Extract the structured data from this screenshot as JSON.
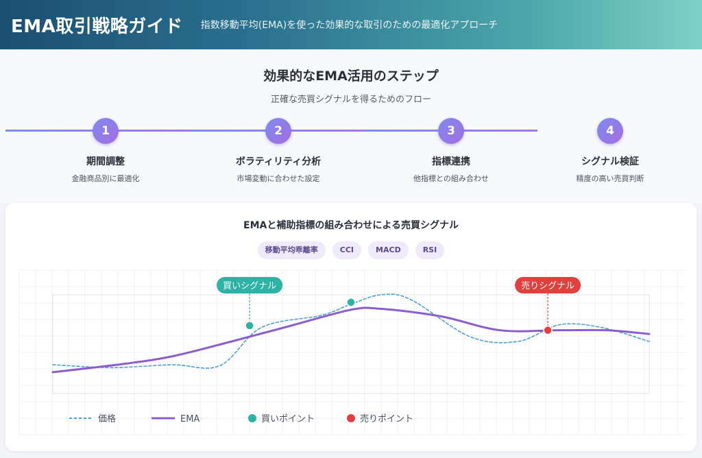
{
  "header": {
    "title": "EMA取引戦略ガイド",
    "subtitle": "指数移動平均(EMA)を使った効果的な取引のための最適化アプローチ"
  },
  "steps_section": {
    "title": "効果的なEMA活用のステップ",
    "subtitle": "正確な売買シグナルを得るためのフロー",
    "steps": [
      {
        "number": "1",
        "name": "期間調整",
        "desc": "金融商品別に最適化"
      },
      {
        "number": "2",
        "name": "ボラティリティ分析",
        "desc": "市場変動に合わせた設定"
      },
      {
        "number": "3",
        "name": "指標連携",
        "desc": "他指標との組み合わせ"
      },
      {
        "number": "4",
        "name": "シグナル検証",
        "desc": "精度の高い売買判断"
      }
    ]
  },
  "chart_card": {
    "title": "EMAと補助指標の組み合わせによる売買シグナル",
    "tags": [
      "移動平均乖離率",
      "CCI",
      "MACD",
      "RSI"
    ]
  },
  "chart_data": {
    "type": "line",
    "x_range": [
      0,
      100
    ],
    "y_range": [
      0,
      100
    ],
    "grid": true,
    "series": [
      {
        "name": "価格",
        "style": "dashed",
        "color": "#4a9fd6",
        "x": [
          0,
          10,
          20,
          28,
          35,
          45,
          50,
          55,
          60,
          70,
          78,
          85,
          92,
          100
        ],
        "y": [
          25,
          22,
          25,
          24,
          65,
          78,
          90,
          100,
          95,
          55,
          50,
          68,
          65,
          50
        ]
      },
      {
        "name": "EMA",
        "style": "solid",
        "color": "#8a5cd0",
        "x": [
          0,
          12,
          20,
          30,
          40,
          50,
          55,
          65,
          75,
          85,
          93,
          100
        ],
        "y": [
          17,
          26,
          34,
          50,
          67,
          84,
          85,
          77,
          62,
          62,
          62,
          58
        ]
      }
    ],
    "points": [
      {
        "type": "buy",
        "x": 33,
        "y": 67,
        "color": "#2db3a4"
      },
      {
        "type": "buy",
        "x": 50,
        "y": 92,
        "color": "#2db3a4"
      },
      {
        "type": "sell",
        "x": 83,
        "y": 62,
        "color": "#e2403d"
      }
    ],
    "annotations": [
      {
        "text": "買いシグナル",
        "color": "#2db3a4",
        "x": 33
      },
      {
        "text": "売りシグナル",
        "color": "#e2403d",
        "x": 83
      }
    ],
    "legend": [
      {
        "label": "価格",
        "kind": "dashed-line",
        "color": "#4a9fd6"
      },
      {
        "label": "EMA",
        "kind": "line",
        "color": "#8a5cd0"
      },
      {
        "label": "買いポイント",
        "kind": "dot",
        "color": "#2db3a4"
      },
      {
        "label": "売りポイント",
        "kind": "dot",
        "color": "#e2403d"
      }
    ],
    "legend_position": "bottom-left"
  }
}
